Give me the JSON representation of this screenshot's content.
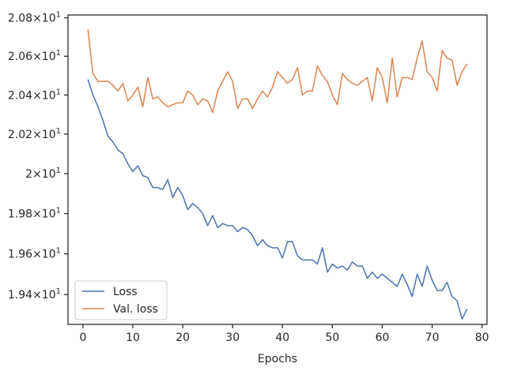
{
  "chart_data": {
    "type": "line",
    "title": "",
    "xlabel": "Epochs",
    "ylabel": "",
    "xlim": [
      -3,
      81
    ],
    "ylim": [
      19.255,
      20.815
    ],
    "yscale": "log",
    "grid": false,
    "legend_position": "lower-left",
    "xticks": [
      0,
      10,
      20,
      30,
      40,
      50,
      60,
      70,
      80
    ],
    "xtick_labels": [
      "0",
      "10",
      "20",
      "30",
      "40",
      "50",
      "60",
      "70",
      "80"
    ],
    "yticks": [
      19.4,
      19.6,
      19.8,
      20.0,
      20.2,
      20.4,
      20.6,
      20.8
    ],
    "ytick_labels": [
      {
        "base": "1.94",
        "exp": "1"
      },
      {
        "base": "1.96",
        "exp": "1"
      },
      {
        "base": "1.98",
        "exp": "1"
      },
      {
        "base": "2",
        "exp": "1"
      },
      {
        "base": "2.02",
        "exp": "1"
      },
      {
        "base": "2.04",
        "exp": "1"
      },
      {
        "base": "2.06",
        "exp": "1"
      },
      {
        "base": "2.08",
        "exp": "1"
      }
    ],
    "x": [
      1,
      2,
      3,
      4,
      5,
      6,
      7,
      8,
      9,
      10,
      11,
      12,
      13,
      14,
      15,
      16,
      17,
      18,
      19,
      20,
      21,
      22,
      23,
      24,
      25,
      26,
      27,
      28,
      29,
      30,
      31,
      32,
      33,
      34,
      35,
      36,
      37,
      38,
      39,
      40,
      41,
      42,
      43,
      44,
      45,
      46,
      47,
      48,
      49,
      50,
      51,
      52,
      53,
      54,
      55,
      56,
      57,
      58,
      59,
      60,
      61,
      62,
      63,
      64,
      65,
      66,
      67,
      68,
      69,
      70,
      71,
      72,
      73,
      74,
      75,
      76,
      77
    ],
    "series": [
      {
        "name": "Loss",
        "color": "#4c72b0",
        "values": [
          20.48,
          20.4,
          20.34,
          20.27,
          20.19,
          20.16,
          20.12,
          20.1,
          20.05,
          20.01,
          20.04,
          19.99,
          19.98,
          19.93,
          19.93,
          19.92,
          19.97,
          19.88,
          19.93,
          19.89,
          19.82,
          19.85,
          19.83,
          19.8,
          19.74,
          19.79,
          19.73,
          19.75,
          19.74,
          19.74,
          19.71,
          19.73,
          19.72,
          19.69,
          19.64,
          19.67,
          19.64,
          19.63,
          19.63,
          19.58,
          19.66,
          19.66,
          19.59,
          19.57,
          19.57,
          19.57,
          19.55,
          19.63,
          19.51,
          19.55,
          19.53,
          19.54,
          19.52,
          19.56,
          19.54,
          19.54,
          19.48,
          19.51,
          19.48,
          19.5,
          19.48,
          19.46,
          19.44,
          19.5,
          19.45,
          19.39,
          19.5,
          19.44,
          19.54,
          19.47,
          19.42,
          19.42,
          19.46,
          19.39,
          19.37,
          19.28,
          19.33
        ]
      },
      {
        "name": "Val. loss",
        "color": "#dd8452",
        "values": [
          20.74,
          20.51,
          20.47,
          20.47,
          20.47,
          20.45,
          20.42,
          20.46,
          20.37,
          20.4,
          20.44,
          20.34,
          20.49,
          20.38,
          20.39,
          20.36,
          20.34,
          20.35,
          20.36,
          20.36,
          20.42,
          20.4,
          20.35,
          20.38,
          20.37,
          20.31,
          20.42,
          20.47,
          20.52,
          20.47,
          20.33,
          20.38,
          20.38,
          20.33,
          20.38,
          20.42,
          20.39,
          20.44,
          20.52,
          20.49,
          20.46,
          20.48,
          20.54,
          20.4,
          20.42,
          20.42,
          20.55,
          20.5,
          20.47,
          20.4,
          20.35,
          20.51,
          20.48,
          20.46,
          20.45,
          20.47,
          20.49,
          20.37,
          20.54,
          20.49,
          20.36,
          20.59,
          20.39,
          20.49,
          20.49,
          20.48,
          20.59,
          20.68,
          20.52,
          20.49,
          20.42,
          20.63,
          20.59,
          20.58,
          20.45,
          20.52,
          20.56
        ]
      }
    ]
  }
}
